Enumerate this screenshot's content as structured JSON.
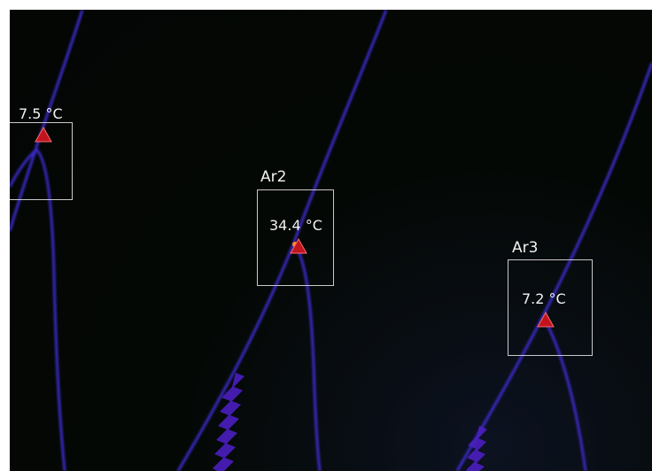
{
  "thermal_view": {
    "background_color": "#030603",
    "line_color": "#3a2cc8",
    "hotspot_color": "#ff8c1a",
    "areas": [
      {
        "label": "",
        "temperature": "7.5 °C",
        "marker_icon": "red-triangle-marker-icon"
      },
      {
        "label": "Ar2",
        "temperature": "34.4 °C",
        "marker_icon": "red-triangle-marker-icon"
      },
      {
        "label": "Ar3",
        "temperature": "7.2 °C",
        "marker_icon": "red-triangle-marker-icon"
      }
    ],
    "marker_color": "#c0151e"
  }
}
